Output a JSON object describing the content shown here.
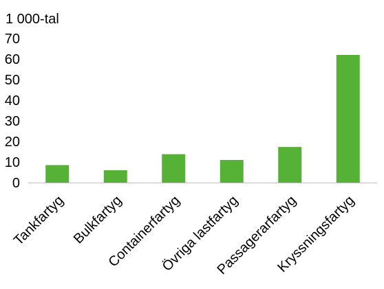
{
  "chart_data": {
    "type": "bar",
    "unit_label": "1 000-tal",
    "categories": [
      "Tankfartyg",
      "Bulkfartyg",
      "Containerfartyg",
      "Övriga lastfartyg",
      "Passagerarfartyg",
      "Kryssningsfartyg"
    ],
    "values": [
      8.5,
      6,
      13.8,
      11,
      17.3,
      62
    ],
    "ylim": [
      0,
      70
    ],
    "yticks": [
      0,
      10,
      20,
      30,
      40,
      50,
      60,
      70
    ],
    "grid": false,
    "legend": "none",
    "colors": {
      "bar": "#56b236",
      "axis": "#bfbfbf"
    }
  }
}
